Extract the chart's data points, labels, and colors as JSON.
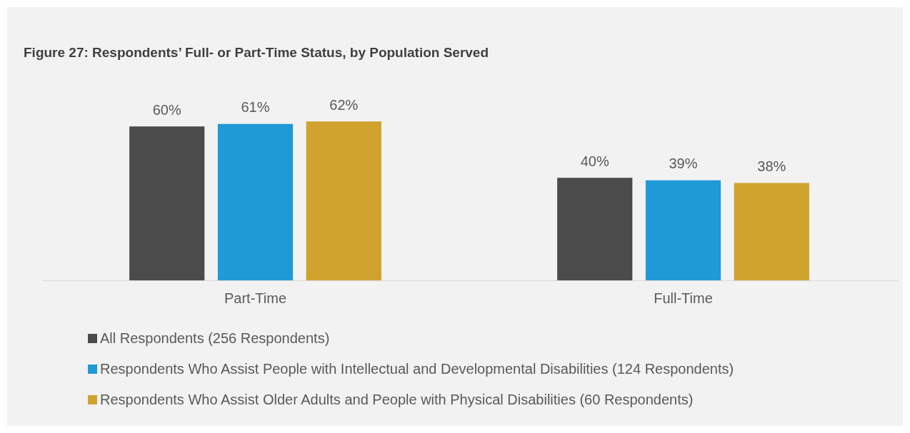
{
  "chart_data": {
    "type": "bar",
    "title": "Figure 27: Respondents’ Full- or Part-Time Status, by Population Served",
    "categories": [
      "Part-Time",
      "Full-Time"
    ],
    "series": [
      {
        "name": "All Respondents (256 Respondents)",
        "color": "#4b4b4b",
        "values": [
          60,
          40
        ],
        "value_labels": [
          "60%",
          "40%"
        ]
      },
      {
        "name": "Respondents Who Assist People with Intellectual and Developmental Disabilities (124 Respondents)",
        "color": "#1f9ad6",
        "values": [
          61,
          39
        ],
        "value_labels": [
          "61%",
          "39%"
        ]
      },
      {
        "name": "Respondents Who Assist Older Adults and People with Physical Disabilities (60 Respondents)",
        "color": "#d0a22e",
        "values": [
          62,
          38
        ],
        "value_labels": [
          "62%",
          "38%"
        ]
      }
    ],
    "legend": "bottom"
  }
}
